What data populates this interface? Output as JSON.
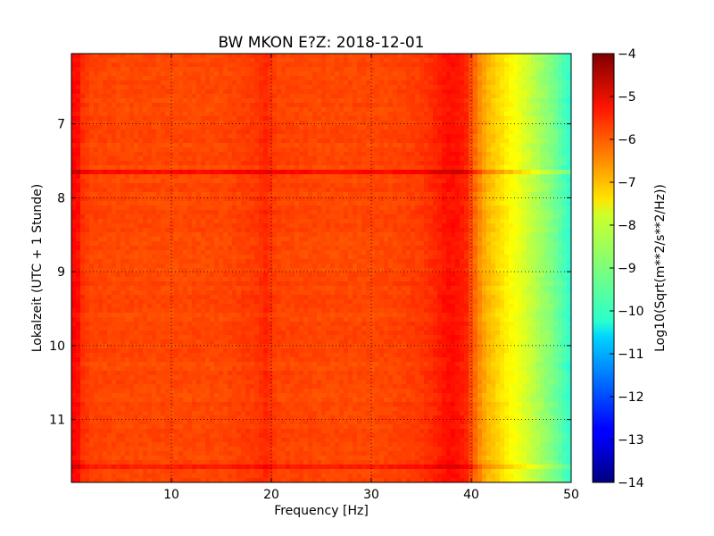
{
  "chart_data": {
    "type": "heatmap",
    "title": "BW MKON E?Z: 2018-12-01",
    "xlabel": "Frequency [Hz]",
    "ylabel": "Lokalzeit (UTC + 1 Stunde)",
    "xlim": [
      0,
      50
    ],
    "ylim": [
      11.85,
      6.05
    ],
    "y_inverted": true,
    "xticks": [
      10,
      20,
      30,
      40,
      50
    ],
    "yticks": [
      7,
      8,
      9,
      10,
      11
    ],
    "grid": true,
    "colormap": "jet",
    "colorbar": {
      "label": "Log10(Sqrt(m**2/s**2/Hz))",
      "range": [
        -14,
        -4
      ],
      "ticks": [
        -4,
        -5,
        -6,
        -7,
        -8,
        -9,
        -10,
        -11,
        -12,
        -13,
        -14
      ]
    },
    "frequency_profile": {
      "x": [
        0,
        0.5,
        1,
        2,
        5,
        10,
        15,
        18.5,
        19.5,
        20.5,
        25,
        30,
        33,
        35,
        36.5,
        37.5,
        38.5,
        39.5,
        40,
        40.8,
        41.5,
        42.5,
        43.5,
        45,
        46.5,
        48,
        49.5,
        50
      ],
      "values": [
        -5.4,
        -5.2,
        -5.7,
        -5.9,
        -5.95,
        -5.95,
        -5.95,
        -5.8,
        -5.6,
        -5.9,
        -5.95,
        -5.95,
        -5.9,
        -5.8,
        -5.6,
        -5.4,
        -5.4,
        -5.6,
        -6.0,
        -6.6,
        -7.0,
        -7.3,
        -7.6,
        -8.0,
        -8.5,
        -9.0,
        -9.6,
        -9.9
      ]
    },
    "time_events": [
      {
        "time": 7.65,
        "delta": 0.6
      },
      {
        "time": 11.62,
        "delta": 0.5
      }
    ]
  }
}
